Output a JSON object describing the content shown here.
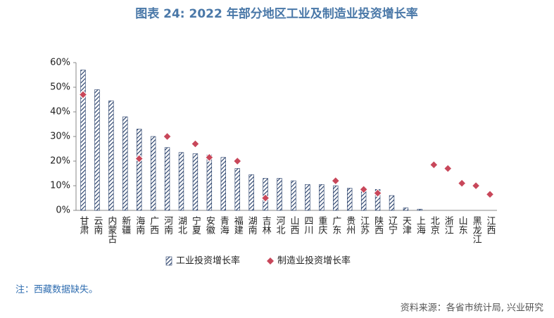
{
  "chart_data": {
    "type": "bar",
    "title": "图表 24: 2022 年部分地区工业及制造业投资增长率",
    "note": "注：西藏数据缺失。",
    "source": "资料来源：各省市统计局, 兴业研究",
    "categories": [
      "甘肃",
      "云南",
      "内蒙古",
      "新疆",
      "海南",
      "广西",
      "河南",
      "湖北",
      "宁夏",
      "安徽",
      "青海",
      "福建",
      "湖南",
      "吉林",
      "河北",
      "山西",
      "四川",
      "重庆",
      "广东",
      "贵州",
      "江苏",
      "陕西",
      "辽宁",
      "天津",
      "上海",
      "北京",
      "浙江",
      "山东",
      "黑龙江",
      "江西"
    ],
    "series": [
      {
        "name": "工业投资增长率",
        "type": "bar",
        "color": "#1f3864",
        "values": [
          57,
          49,
          44.5,
          38,
          33,
          30,
          25.5,
          23.5,
          23,
          22.5,
          21.5,
          17,
          14.5,
          13,
          13,
          12,
          10.5,
          10.5,
          10,
          9,
          8.5,
          8.5,
          6,
          1,
          0.5,
          null,
          null,
          null,
          null,
          null
        ]
      },
      {
        "name": "制造业投资增长率",
        "type": "scatter",
        "color": "#c8475a",
        "values": [
          47,
          null,
          null,
          null,
          21,
          null,
          30,
          null,
          27,
          21.5,
          null,
          20,
          null,
          5,
          null,
          null,
          null,
          null,
          12,
          null,
          8.5,
          7,
          null,
          null,
          null,
          18.5,
          17,
          11,
          10,
          6.5
        ]
      }
    ],
    "ylim": [
      0,
      60
    ],
    "yticks": [
      {
        "value": 0,
        "label": "0%"
      },
      {
        "value": 10,
        "label": "10%"
      },
      {
        "value": 20,
        "label": "20%"
      },
      {
        "value": 30,
        "label": "30%"
      },
      {
        "value": 40,
        "label": "40%"
      },
      {
        "value": 50,
        "label": "50%"
      },
      {
        "value": 60,
        "label": "60%"
      }
    ]
  }
}
